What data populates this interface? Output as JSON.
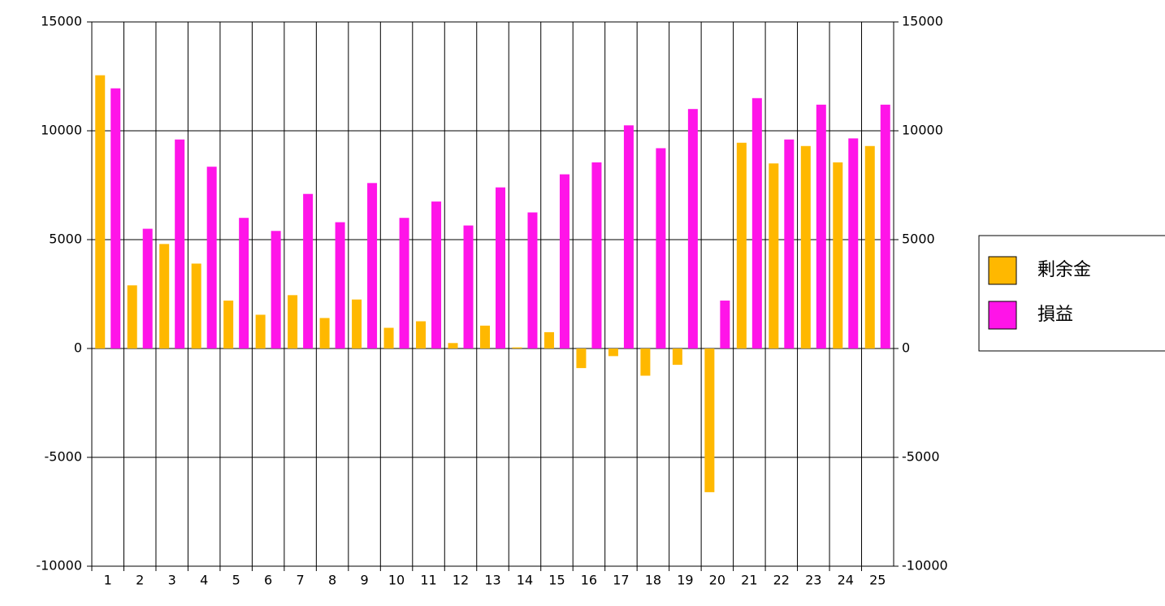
{
  "chart_data": {
    "type": "bar",
    "categories": [
      "1",
      "2",
      "3",
      "4",
      "5",
      "6",
      "7",
      "8",
      "9",
      "10",
      "11",
      "12",
      "13",
      "14",
      "15",
      "16",
      "17",
      "18",
      "19",
      "20",
      "21",
      "22",
      "23",
      "24",
      "25"
    ],
    "series": [
      {
        "name": "剰余金",
        "color": "#ffb800",
        "values": [
          12550,
          2900,
          4800,
          3900,
          2200,
          1550,
          2450,
          1400,
          2250,
          950,
          1250,
          250,
          1050,
          50,
          750,
          -900,
          -350,
          -1250,
          -750,
          -6600,
          9450,
          8500,
          9300,
          8550,
          9300
        ]
      },
      {
        "name": "損益",
        "color": "#ff14e8",
        "values": [
          11950,
          5500,
          9600,
          8350,
          6000,
          5400,
          7100,
          5800,
          7600,
          6000,
          6750,
          5650,
          7400,
          6250,
          8000,
          8550,
          10250,
          9200,
          11000,
          2200,
          11500,
          9600,
          11200,
          9650,
          11200
        ]
      }
    ],
    "ylim": [
      -10000,
      15000
    ],
    "yticks": [
      -10000,
      -5000,
      0,
      5000,
      10000,
      15000
    ],
    "y2lim": [
      -10000,
      15000
    ],
    "y2ticks": [
      -10000,
      -5000,
      0,
      5000,
      10000,
      15000
    ],
    "grid": true,
    "legend": "right"
  }
}
